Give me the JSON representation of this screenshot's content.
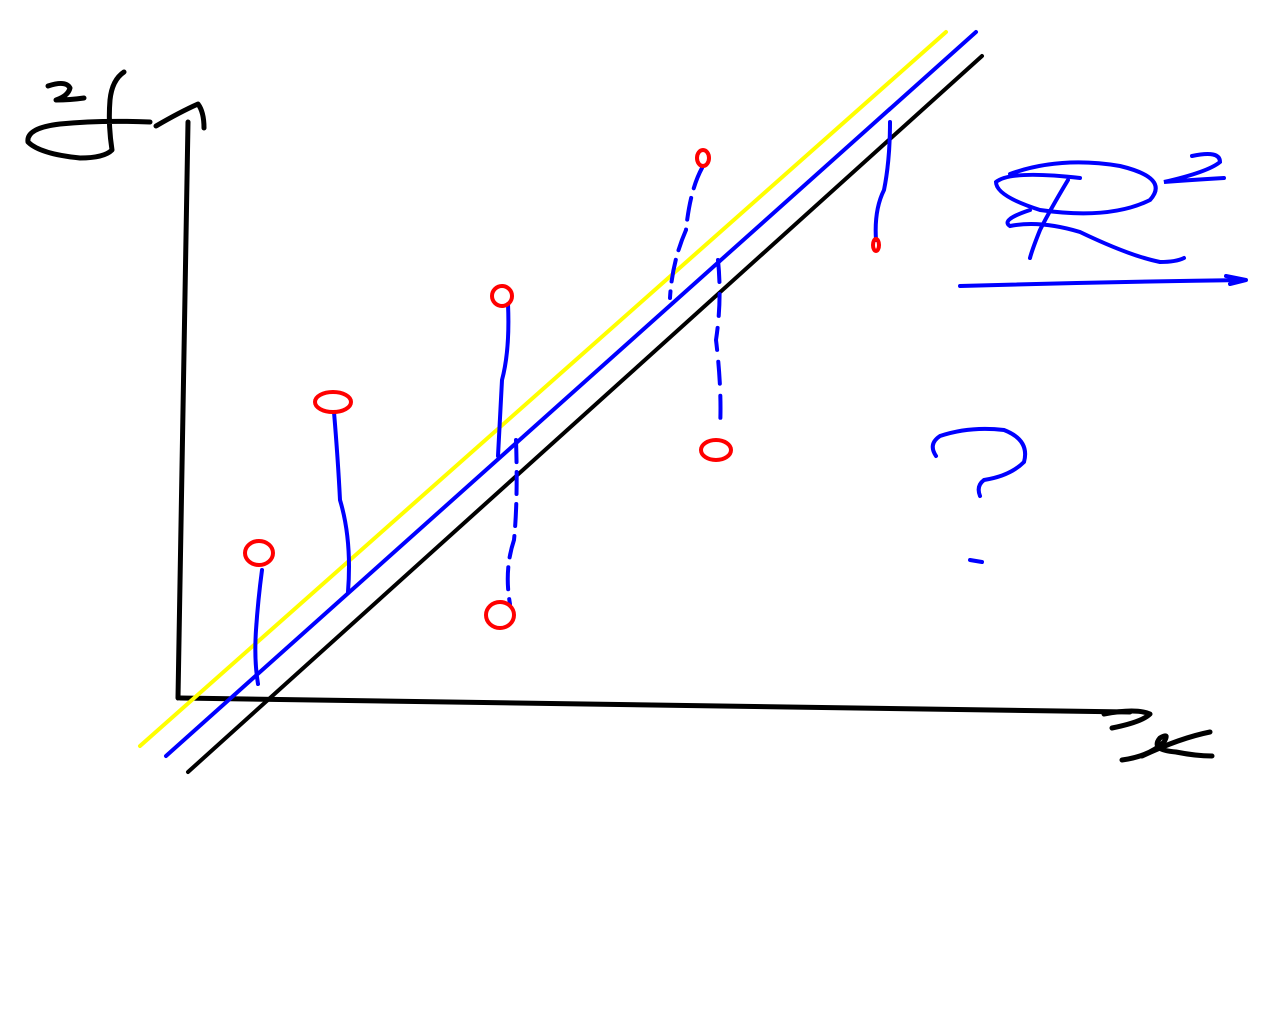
{
  "colors": {
    "background": "#ffffff",
    "axes": "#000000",
    "fit_line_black": "#000000",
    "fit_line_blue": "#0000ff",
    "fit_line_yellow": "#ffff00",
    "data_points": "#ff0000",
    "residuals": "#0000ff",
    "annotation": "#0000ff"
  },
  "labels": {
    "y_axis": "y",
    "x_axis": "x",
    "r_squared": "R²",
    "question": "?"
  },
  "icons": {
    "y_axis_arrow": "arrowhead-icon",
    "x_axis_arrow": "arrowhead-icon",
    "underline_arrow": "arrow-right-icon",
    "data_point_marker": "circle-icon"
  }
}
